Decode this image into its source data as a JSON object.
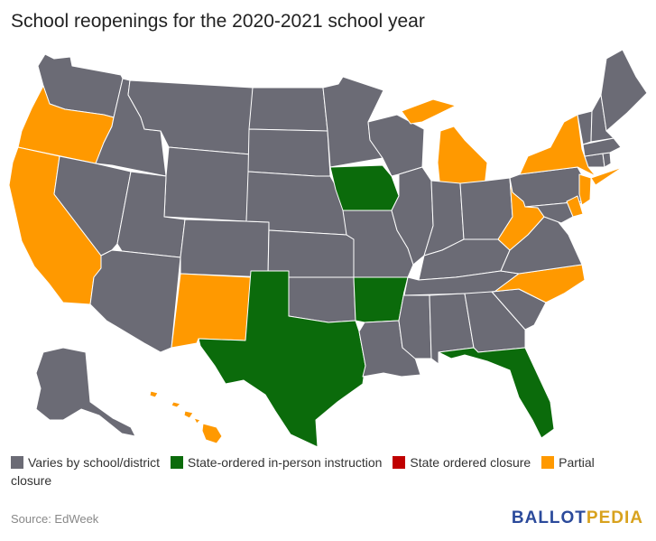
{
  "title": "School reopenings for the 2020-2021 school year",
  "legend": [
    {
      "label": "Varies by school/district",
      "color": "#6b6b75"
    },
    {
      "label": "State-ordered in-person instruction",
      "color": "#0b6b0b"
    },
    {
      "label": "State ordered closure",
      "color": "#c00000"
    },
    {
      "label": "Partial closure",
      "color": "#ff9900"
    }
  ],
  "source": "Source: EdWeek",
  "logo": {
    "part1": "BALLOT",
    "part2": "PEDIA"
  },
  "colors": {
    "varies": "#6b6b75",
    "in_person": "#0b6b0b",
    "closure": "#c00000",
    "partial": "#ff9900",
    "border": "#ffffff"
  },
  "state_status": {
    "OR": "partial",
    "CA": "partial",
    "NM": "partial",
    "NY": "partial",
    "MI": "partial",
    "WV": "partial",
    "NC": "partial",
    "DE": "partial",
    "NJ": "partial",
    "HI": "partial",
    "IA": "in_person",
    "TX": "in_person",
    "AR": "in_person",
    "FL": "in_person",
    "WA": "varies",
    "ID": "varies",
    "MT": "varies",
    "WY": "varies",
    "NV": "varies",
    "UT": "varies",
    "AZ": "varies",
    "CO": "varies",
    "ND": "varies",
    "SD": "varies",
    "NE": "varies",
    "KS": "varies",
    "OK": "varies",
    "MN": "varies",
    "MO": "varies",
    "LA": "varies",
    "WI": "varies",
    "IL": "varies",
    "IN": "varies",
    "OH": "varies",
    "KY": "varies",
    "TN": "varies",
    "MS": "varies",
    "AL": "varies",
    "GA": "varies",
    "SC": "varies",
    "VA": "varies",
    "PA": "varies",
    "MD": "varies",
    "CT": "varies",
    "RI": "varies",
    "MA": "varies",
    "VT": "varies",
    "NH": "varies",
    "ME": "varies",
    "AK": "varies"
  }
}
